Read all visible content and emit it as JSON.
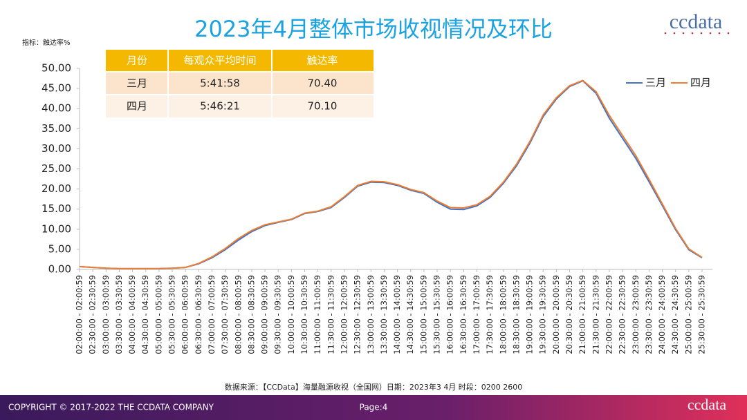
{
  "chart_data": {
    "type": "line",
    "title": "2023年4月整体市场收视情况及环比",
    "y_label": "指标：触达率%",
    "source": "数据来源：【CCData】海量融源收视（全国网）日期：2023年3 4月 时段：0200 2600",
    "categories": [
      "02:00:00 - 02:00:59",
      "02:30:00 - 02:30:59",
      "03:00:00 - 03:00:59",
      "03:30:00 - 03:30:59",
      "04:00:00 - 04:00:59",
      "04:30:00 - 04:30:59",
      "05:00:00 - 05:00:59",
      "05:30:00 - 05:30:59",
      "06:00:00 - 06:00:59",
      "06:30:00 - 06:30:59",
      "07:00:00 - 07:00:59",
      "07:30:00 - 07:30:59",
      "08:00:00 - 08:00:59",
      "08:30:00 - 08:30:59",
      "09:00:00 - 09:00:59",
      "09:30:00 - 09:30:59",
      "10:00:00 - 10:00:59",
      "10:30:00 - 10:30:59",
      "11:00:00 - 11:00:59",
      "11:30:00 - 11:30:59",
      "12:00:00 - 12:00:59",
      "12:30:00 - 12:30:59",
      "13:00:00 - 13:00:59",
      "13:30:00 - 13:30:59",
      "14:00:00 - 14:00:59",
      "14:30:00 - 14:30:59",
      "15:00:00 - 15:00:59",
      "15:30:00 - 15:30:59",
      "16:00:00 - 16:00:59",
      "16:30:00 - 16:30:59",
      "17:00:00 - 17:00:59",
      "17:30:00 - 17:30:59",
      "18:00:00 - 18:00:59",
      "18:30:00 - 18:30:59",
      "19:00:00 - 19:00:59",
      "19:30:00 - 19:30:59",
      "20:00:00 - 20:00:59",
      "20:30:00 - 20:30:59",
      "21:00:00 - 21:00:59",
      "21:30:00 - 21:30:59",
      "22:00:00 - 22:00:59",
      "22:30:00 - 22:30:59",
      "23:00:00 - 23:00:59",
      "23:30:00 - 23:30:59",
      "24:00:00 - 24:00:59",
      "24:30:00 - 24:30:59",
      "25:00:00 - 25:00:59",
      "25:30:00 - 25:30:59"
    ],
    "series": [
      {
        "name": "三月",
        "color": "#4472c4",
        "values": [
          0.7,
          0.5,
          0.3,
          0.2,
          0.2,
          0.2,
          0.2,
          0.3,
          0.5,
          1.4,
          2.9,
          4.9,
          7.3,
          9.4,
          10.9,
          11.7,
          12.4,
          13.9,
          14.4,
          15.4,
          17.9,
          20.7,
          21.7,
          21.6,
          20.9,
          19.7,
          18.9,
          16.7,
          15.0,
          14.9,
          15.8,
          17.9,
          21.4,
          25.8,
          31.4,
          38.0,
          42.4,
          45.5,
          46.9,
          43.8,
          37.6,
          32.6,
          27.6,
          21.8,
          15.9,
          9.9,
          4.9,
          2.9
        ]
      },
      {
        "name": "四月",
        "color": "#ed7d31",
        "values": [
          0.7,
          0.5,
          0.3,
          0.2,
          0.2,
          0.2,
          0.2,
          0.3,
          0.5,
          1.5,
          3.1,
          5.2,
          7.7,
          9.7,
          11.1,
          11.8,
          12.5,
          14.0,
          14.5,
          15.6,
          18.1,
          20.9,
          21.9,
          21.8,
          21.1,
          19.9,
          19.1,
          17.0,
          15.4,
          15.3,
          16.1,
          18.2,
          21.7,
          26.2,
          31.8,
          38.4,
          42.7,
          45.7,
          47.0,
          44.2,
          38.3,
          33.3,
          28.3,
          22.4,
          16.3,
          10.2,
          5.1,
          3.0
        ]
      }
    ],
    "ylim": [
      0,
      50
    ],
    "yticks": [
      {
        "value": 0,
        "label": "0.00"
      },
      {
        "value": 5,
        "label": "5.00"
      },
      {
        "value": 10,
        "label": "10.00"
      },
      {
        "value": 15,
        "label": "15.00"
      },
      {
        "value": 20,
        "label": "20.00"
      },
      {
        "value": 25,
        "label": "25.00"
      },
      {
        "value": 30,
        "label": "30.00"
      },
      {
        "value": 35,
        "label": "35.00"
      },
      {
        "value": 40,
        "label": "40.00"
      },
      {
        "value": 45,
        "label": "45.00"
      },
      {
        "value": 50,
        "label": "50.00"
      }
    ],
    "legend": "upper right"
  },
  "table": {
    "header": [
      "月份",
      "每观众平均时间",
      "触达率"
    ],
    "rows": [
      [
        "三月",
        "5:41:58",
        "70.40"
      ],
      [
        "四月",
        "5:46:21",
        "70.10"
      ]
    ]
  },
  "logo": "ccdata",
  "footer": {
    "copyright": "COPYRIGHT © 2017-2022 THE CCDATA COMPANY",
    "page": "Page:4",
    "logo": "ccdata"
  }
}
